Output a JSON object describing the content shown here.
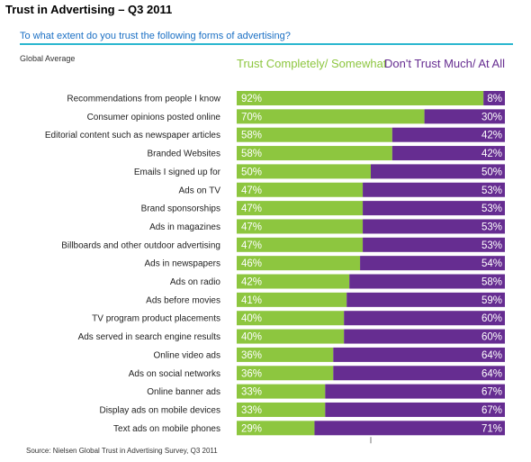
{
  "title": "Trust in Advertising – Q3 2011",
  "subtitle": "To what extent do you trust the following forms of advertising?",
  "scope_label": "Global Average",
  "source": "Source: Nielsen Global Trust in Advertising Survey, Q3 2011",
  "colors": {
    "trust": "#8dc63f",
    "distrust": "#662d91",
    "subtitle": "#1a6fc4",
    "rule": "#2ab7cf"
  },
  "chart_data": {
    "type": "bar",
    "orientation": "horizontal",
    "stacked": true,
    "normalized_to": 100,
    "unit": "%",
    "legend_placement": "top",
    "grid": false,
    "categories": [
      "Recommendations from people I know",
      "Consumer opinions posted online",
      "Editorial content such as newspaper articles",
      "Branded Websites",
      "Emails I signed up for",
      "Ads on TV",
      "Brand sponsorships",
      "Ads in magazines",
      "Billboards and other outdoor advertising",
      "Ads in newspapers",
      "Ads on radio",
      "Ads before movies",
      "TV program product placements",
      "Ads served in search engine results",
      "Online video ads",
      "Ads on social networks",
      "Online banner ads",
      "Display ads on mobile devices",
      "Text ads on mobile phones"
    ],
    "series": [
      {
        "name": "Trust Completely/ Somewhat",
        "values": [
          92,
          70,
          58,
          58,
          50,
          47,
          47,
          47,
          47,
          46,
          42,
          41,
          40,
          40,
          36,
          36,
          33,
          33,
          29
        ]
      },
      {
        "name": "Don't Trust Much/ At All",
        "values": [
          8,
          30,
          42,
          42,
          50,
          53,
          53,
          53,
          53,
          54,
          58,
          59,
          60,
          60,
          64,
          64,
          67,
          67,
          71
        ]
      }
    ]
  }
}
